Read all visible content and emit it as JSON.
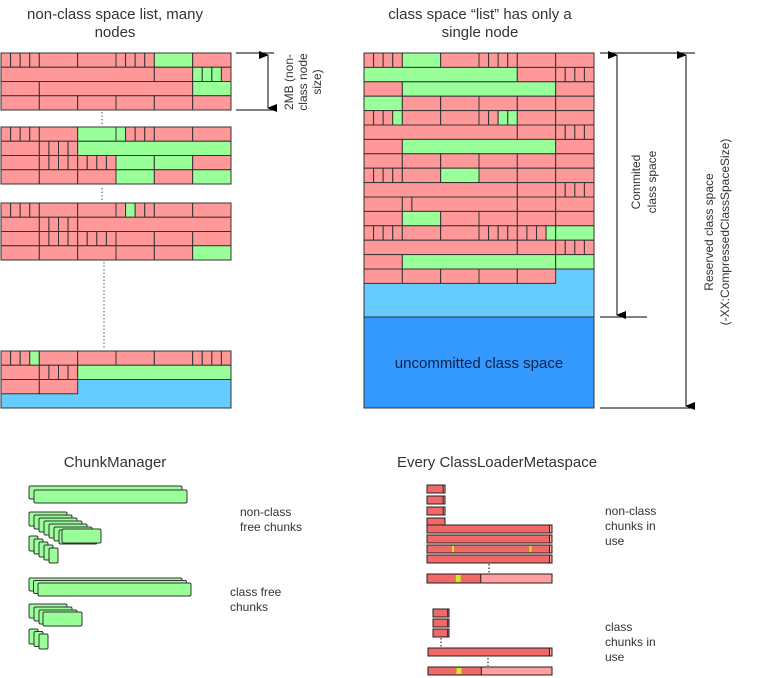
{
  "titles": {
    "nonclass_line1": "non-class space list, many",
    "nonclass_line2": "nodes",
    "class_line1": "class space “list” has only a",
    "class_line2": "single node",
    "chunkmanager": "ChunkManager",
    "clms": "Every ClassLoaderMetaspace"
  },
  "annotations": {
    "node_size": [
      "2MB (non-",
      "class node",
      "size)"
    ],
    "committed": [
      "Commited",
      "class space"
    ],
    "reserved": [
      "Reserved class space",
      "(-XX:CompressedClassSpaceSize)"
    ],
    "uncommitted": "uncommitted class space"
  },
  "chunkmanager": {
    "nonclass_label": [
      "non-class",
      "free chunks"
    ],
    "class_label": [
      "class free",
      "chunks"
    ]
  },
  "clms": {
    "nonclass_label": [
      "non-class",
      "chunks in",
      "use"
    ],
    "class_label": [
      "class",
      "chunks in",
      "use"
    ]
  },
  "colors": {
    "used": "#ff9999",
    "free": "#99ff99",
    "committed_unused": "#66ccff",
    "uncommitted": "#3399ff",
    "chunk_in_use": "#f06868",
    "chunk_unused": "#ff9f9f",
    "current_alloc": "#ccee22",
    "border": "#333333"
  }
}
